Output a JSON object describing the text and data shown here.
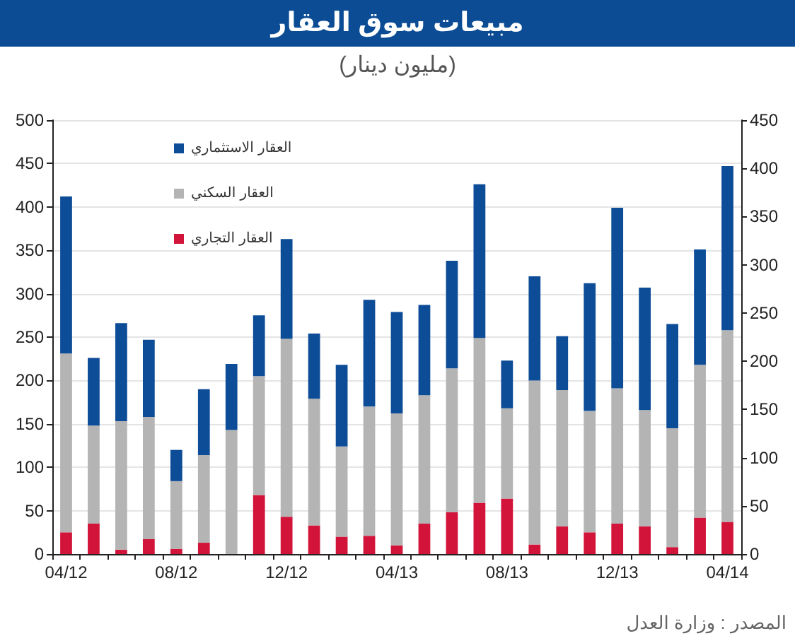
{
  "chart_data": {
    "type": "bar",
    "title": "مبيعات سوق العقار",
    "subtitle": "(مليون دينار)",
    "annotations": [
      "المصدر : وزارة العدل"
    ],
    "categories": [
      "04/12",
      null,
      null,
      null,
      "08/12",
      null,
      null,
      null,
      "12/12",
      null,
      null,
      null,
      "04/13",
      null,
      null,
      null,
      "08/13",
      null,
      null,
      null,
      "12/13",
      null,
      null,
      null,
      "04/14"
    ],
    "series": [
      {
        "name": "العقار التجاري",
        "color": "#d2143a",
        "values": [
          25,
          35,
          5,
          17,
          6,
          13,
          null,
          68,
          43,
          33,
          20,
          21,
          10,
          35,
          48,
          59,
          64,
          11,
          32,
          25,
          35,
          32,
          8,
          42,
          37
        ]
      },
      {
        "name": "العقار السكني",
        "color": "#b4b4b4",
        "values": [
          206,
          113,
          148,
          141,
          78,
          101,
          143,
          137,
          205,
          146,
          104,
          149,
          152,
          148,
          166,
          190,
          104,
          189,
          157,
          140,
          156,
          134,
          137,
          176,
          221
        ]
      },
      {
        "name": "العقار الاستثماري",
        "color": "#0d4c97",
        "values": [
          181,
          78,
          113,
          89,
          36,
          76,
          76,
          70,
          115,
          75,
          94,
          123,
          117,
          104,
          124,
          177,
          55,
          120,
          62,
          147,
          208,
          141,
          120,
          133,
          189
        ]
      }
    ],
    "stacked": true,
    "ylim": [
      0,
      500
    ],
    "yticks": [
      0,
      50,
      100,
      150,
      200,
      250,
      300,
      350,
      400,
      450,
      500
    ],
    "y2lim": [
      0,
      450
    ],
    "y2ticks": [
      0,
      50,
      100,
      150,
      200,
      250,
      300,
      350,
      400,
      450
    ],
    "grid": "y",
    "legend": "top left"
  }
}
